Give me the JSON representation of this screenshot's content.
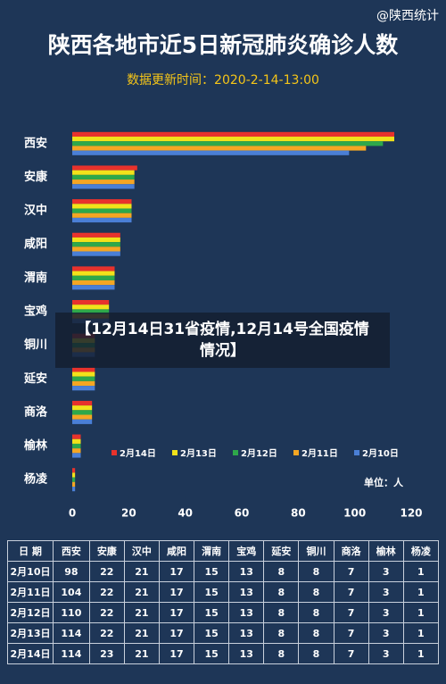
{
  "header": {
    "watermark": "@陕西统计"
  },
  "chart_data": {
    "type": "bar",
    "title": "陕西各地市近5日新冠肺炎确诊人数",
    "subtitle": "数据更新时间：2020-2-14-13:00",
    "unit_label": "单位：人",
    "categories": [
      "西安",
      "安康",
      "汉中",
      "咸阳",
      "渭南",
      "宝鸡",
      "铜川",
      "延安",
      "商洛",
      "榆林",
      "杨凌"
    ],
    "series": [
      {
        "name": "2月14日",
        "color": "#e8322c",
        "values": [
          114,
          23,
          21,
          17,
          15,
          13,
          8,
          8,
          7,
          3,
          1
        ]
      },
      {
        "name": "2月13日",
        "color": "#f2e21a",
        "values": [
          114,
          22,
          21,
          17,
          15,
          13,
          8,
          8,
          7,
          3,
          1
        ]
      },
      {
        "name": "2月12日",
        "color": "#2ea84a",
        "values": [
          110,
          22,
          21,
          17,
          15,
          13,
          8,
          8,
          7,
          3,
          1
        ]
      },
      {
        "name": "2月11日",
        "color": "#f5a623",
        "values": [
          104,
          22,
          21,
          17,
          15,
          13,
          8,
          8,
          7,
          3,
          1
        ]
      },
      {
        "name": "2月10日",
        "color": "#4a7fd6",
        "values": [
          98,
          22,
          21,
          17,
          15,
          13,
          8,
          8,
          7,
          3,
          1
        ]
      }
    ],
    "xlim": [
      0,
      120
    ],
    "xticks": [
      0,
      20,
      40,
      60,
      80,
      100,
      120
    ]
  },
  "table": {
    "columns": [
      "日 期",
      "西安",
      "安康",
      "汉中",
      "咸阳",
      "渭南",
      "宝鸡",
      "延安",
      "铜川",
      "商洛",
      "榆林",
      "杨凌"
    ],
    "rows": [
      [
        "2月10日",
        98,
        22,
        21,
        17,
        15,
        13,
        8,
        8,
        7,
        3,
        1
      ],
      [
        "2月11日",
        104,
        22,
        21,
        17,
        15,
        13,
        8,
        8,
        7,
        3,
        1
      ],
      [
        "2月12日",
        110,
        22,
        21,
        17,
        15,
        13,
        8,
        8,
        7,
        3,
        1
      ],
      [
        "2月13日",
        114,
        22,
        21,
        17,
        15,
        13,
        8,
        8,
        7,
        3,
        1
      ],
      [
        "2月14日",
        114,
        23,
        21,
        17,
        15,
        13,
        8,
        8,
        7,
        3,
        1
      ]
    ]
  },
  "overlay": {
    "text": "【12月14日31省疫情,12月14号全国疫情情况】"
  }
}
